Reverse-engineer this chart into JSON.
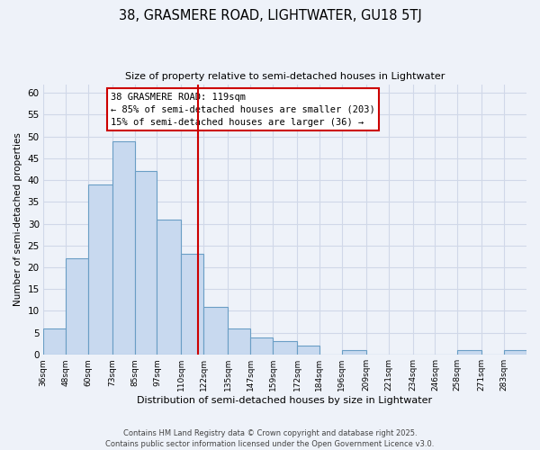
{
  "title": "38, GRASMERE ROAD, LIGHTWATER, GU18 5TJ",
  "subtitle": "Size of property relative to semi-detached houses in Lightwater",
  "xlabel": "Distribution of semi-detached houses by size in Lightwater",
  "ylabel": "Number of semi-detached properties",
  "bin_labels": [
    "36sqm",
    "48sqm",
    "60sqm",
    "73sqm",
    "85sqm",
    "97sqm",
    "110sqm",
    "122sqm",
    "135sqm",
    "147sqm",
    "159sqm",
    "172sqm",
    "184sqm",
    "196sqm",
    "209sqm",
    "221sqm",
    "234sqm",
    "246sqm",
    "258sqm",
    "271sqm",
    "283sqm"
  ],
  "bin_edges": [
    36,
    48,
    60,
    73,
    85,
    97,
    110,
    122,
    135,
    147,
    159,
    172,
    184,
    196,
    209,
    221,
    234,
    246,
    258,
    271,
    283,
    295
  ],
  "counts": [
    6,
    22,
    39,
    49,
    42,
    31,
    23,
    11,
    6,
    4,
    3,
    2,
    0,
    1,
    0,
    0,
    0,
    0,
    1,
    0,
    1
  ],
  "bar_color": "#c8d9ef",
  "bar_edge_color": "#6a9ec5",
  "vline_x": 119,
  "vline_color": "#cc0000",
  "annotation_title": "38 GRASMERE ROAD: 119sqm",
  "annotation_line1": "← 85% of semi-detached houses are smaller (203)",
  "annotation_line2": "15% of semi-detached houses are larger (36) →",
  "annotation_box_color": "#ffffff",
  "annotation_box_edge": "#cc0000",
  "ylim": [
    0,
    62
  ],
  "yticks": [
    0,
    5,
    10,
    15,
    20,
    25,
    30,
    35,
    40,
    45,
    50,
    55,
    60
  ],
  "footnote1": "Contains HM Land Registry data © Crown copyright and database right 2025.",
  "footnote2": "Contains public sector information licensed under the Open Government Licence v3.0.",
  "bg_color": "#eef2f9",
  "grid_color": "#d0d8e8"
}
